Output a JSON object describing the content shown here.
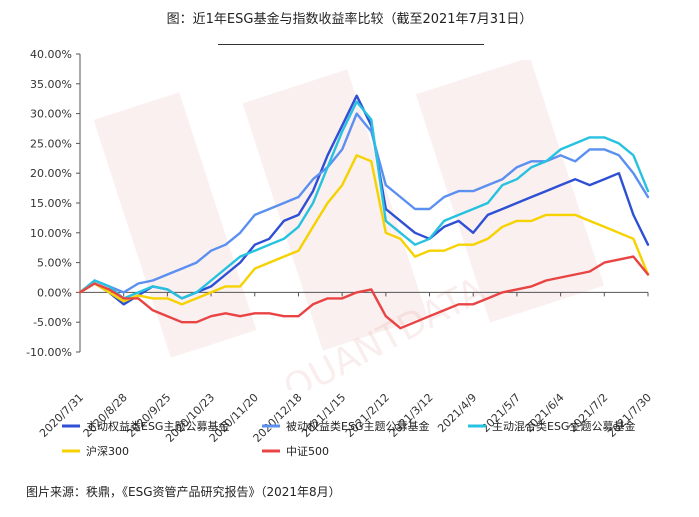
{
  "title": "图：近1年ESG基金与指数收益率比较（截至2021年7月31日）",
  "source": "图片来源：秩鼎，《ESG资管产品研究报告》（2021年8月）",
  "watermark": "QUANTDATA",
  "chart_data": {
    "type": "line",
    "title": "图：近1年ESG基金与指数收益率比较（截至2021年7月31日）",
    "ylim": [
      -10,
      40
    ],
    "yticks": [
      -10,
      -5,
      0,
      5,
      10,
      15,
      20,
      25,
      30,
      35,
      40
    ],
    "ytick_labels": [
      "-10.00%",
      "-5.00%",
      "0.00%",
      "5.00%",
      "10.00%",
      "15.00%",
      "20.00%",
      "25.00%",
      "30.00%",
      "35.00%",
      "40.00%"
    ],
    "xtick_labels": [
      "2020/7/31",
      "2020/8/28",
      "2020/9/25",
      "2020/10/23",
      "2020/11/20",
      "2020/12/18",
      "2021/1/15",
      "2021/2/12",
      "2021/3/12",
      "2021/4/9",
      "2021/5/7",
      "2021/6/4",
      "2021/7/2",
      "2021/7/30"
    ],
    "grid": false,
    "legend_position": "bottom",
    "series": [
      {
        "name": "主动权益类ESG主题公募基金",
        "color": "#2f4fd4",
        "values": [
          0,
          1.5,
          0,
          -2,
          -0.5,
          1,
          0.5,
          -1,
          0,
          1,
          3,
          5,
          8,
          9,
          12,
          13,
          17,
          23,
          28,
          33,
          28,
          14,
          12,
          10,
          9,
          11,
          12,
          10,
          13,
          14,
          15,
          16,
          17,
          18,
          19,
          18,
          19,
          20,
          13,
          8
        ]
      },
      {
        "name": "被动权益类ESG主题公募基金",
        "color": "#5b8ff0",
        "values": [
          0,
          2,
          1,
          0,
          1.5,
          2,
          3,
          4,
          5,
          7,
          8,
          10,
          13,
          14,
          15,
          16,
          19,
          21,
          24,
          30,
          27,
          18,
          16,
          14,
          14,
          16,
          17,
          17,
          18,
          19,
          21,
          22,
          22,
          23,
          22,
          24,
          24,
          23,
          20,
          16
        ]
      },
      {
        "name": "主动混合类ESG主题公募基金",
        "color": "#27c2e0",
        "values": [
          0,
          2,
          1,
          -1,
          0,
          1,
          0.5,
          -1,
          0,
          2,
          4,
          6,
          7,
          8,
          9,
          11,
          15,
          21,
          27,
          32,
          29,
          12,
          10,
          8,
          9,
          12,
          13,
          14,
          15,
          18,
          19,
          21,
          22,
          24,
          25,
          26,
          26,
          25,
          23,
          17
        ]
      },
      {
        "name": "沪深300",
        "color": "#f5d200",
        "values": [
          0,
          1.5,
          0,
          -1.5,
          -0.5,
          -1,
          -1,
          -2,
          -1,
          0,
          1,
          1,
          4,
          5,
          6,
          7,
          11,
          15,
          18,
          23,
          22,
          10,
          9,
          6,
          7,
          7,
          8,
          8,
          9,
          11,
          12,
          12,
          13,
          13,
          13,
          12,
          11,
          10,
          9,
          3
        ]
      },
      {
        "name": "中证500",
        "color": "#e94444",
        "values": [
          0,
          1.5,
          0.5,
          -1,
          -1,
          -3,
          -4,
          -5,
          -5,
          -4,
          -3.5,
          -4,
          -3.5,
          -3.5,
          -4,
          -4,
          -2,
          -1,
          -1,
          0,
          0.5,
          -4,
          -6,
          -5,
          -4,
          -3,
          -2,
          -2,
          -1,
          0,
          0.5,
          1,
          2,
          2.5,
          3,
          3.5,
          5,
          5.5,
          6,
          3
        ]
      }
    ]
  }
}
